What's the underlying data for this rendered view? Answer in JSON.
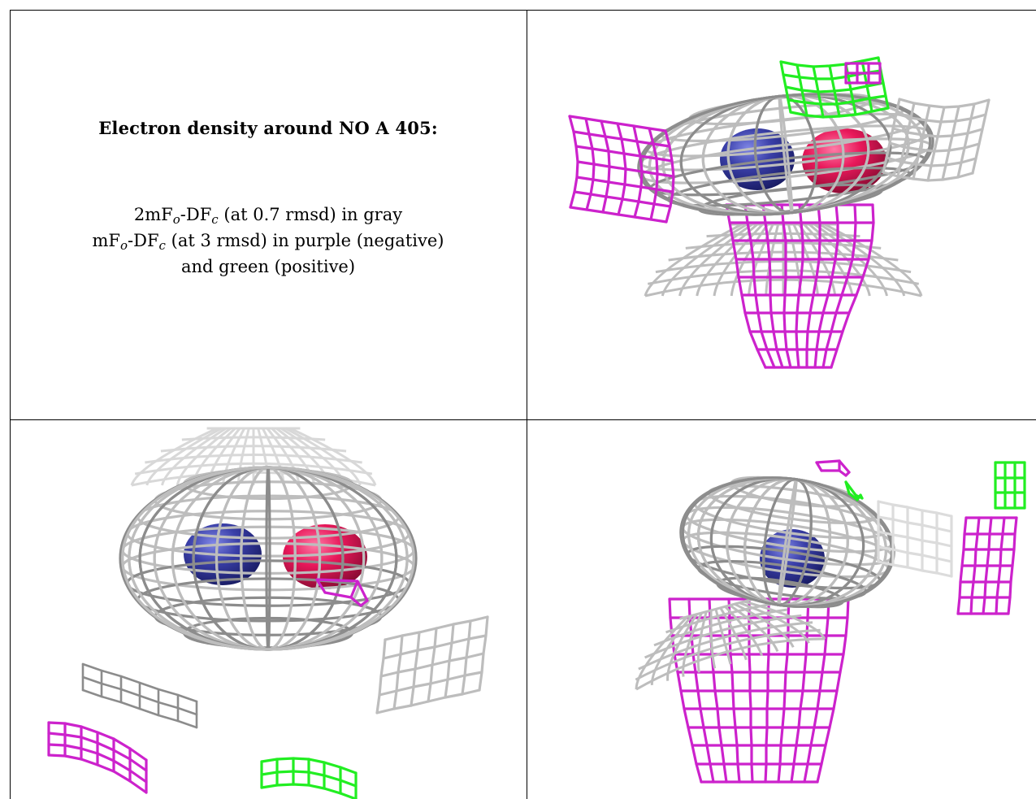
{
  "caption": {
    "title": "Electron density around NO A 405:",
    "line1": {
      "pre": "2mF",
      "sub1": "o",
      "mid": "-DF",
      "sub2": "c",
      "post": " (at 0.7 rmsd) in gray"
    },
    "line2": {
      "pre": "mF",
      "sub1": "o",
      "mid": "-DF",
      "sub2": "c",
      "post": " (at 3 rmsd) in purple (negative)"
    },
    "line3": "and green (positive)"
  },
  "colors": {
    "mesh_gray": "#bdbdbd",
    "mesh_gray_dark": "#8c8c8c",
    "mesh_negative": "#cc22cc",
    "mesh_positive": "#22ee22",
    "atom_nitrogen": "#3a3fa8",
    "atom_oxygen": "#e8185a"
  },
  "views": [
    {
      "name": "view-top-right",
      "atoms": [
        "nitrogen",
        "oxygen"
      ]
    },
    {
      "name": "view-bottom-left",
      "atoms": [
        "nitrogen",
        "oxygen"
      ]
    },
    {
      "name": "view-bottom-right",
      "atoms": [
        "nitrogen"
      ]
    }
  ]
}
